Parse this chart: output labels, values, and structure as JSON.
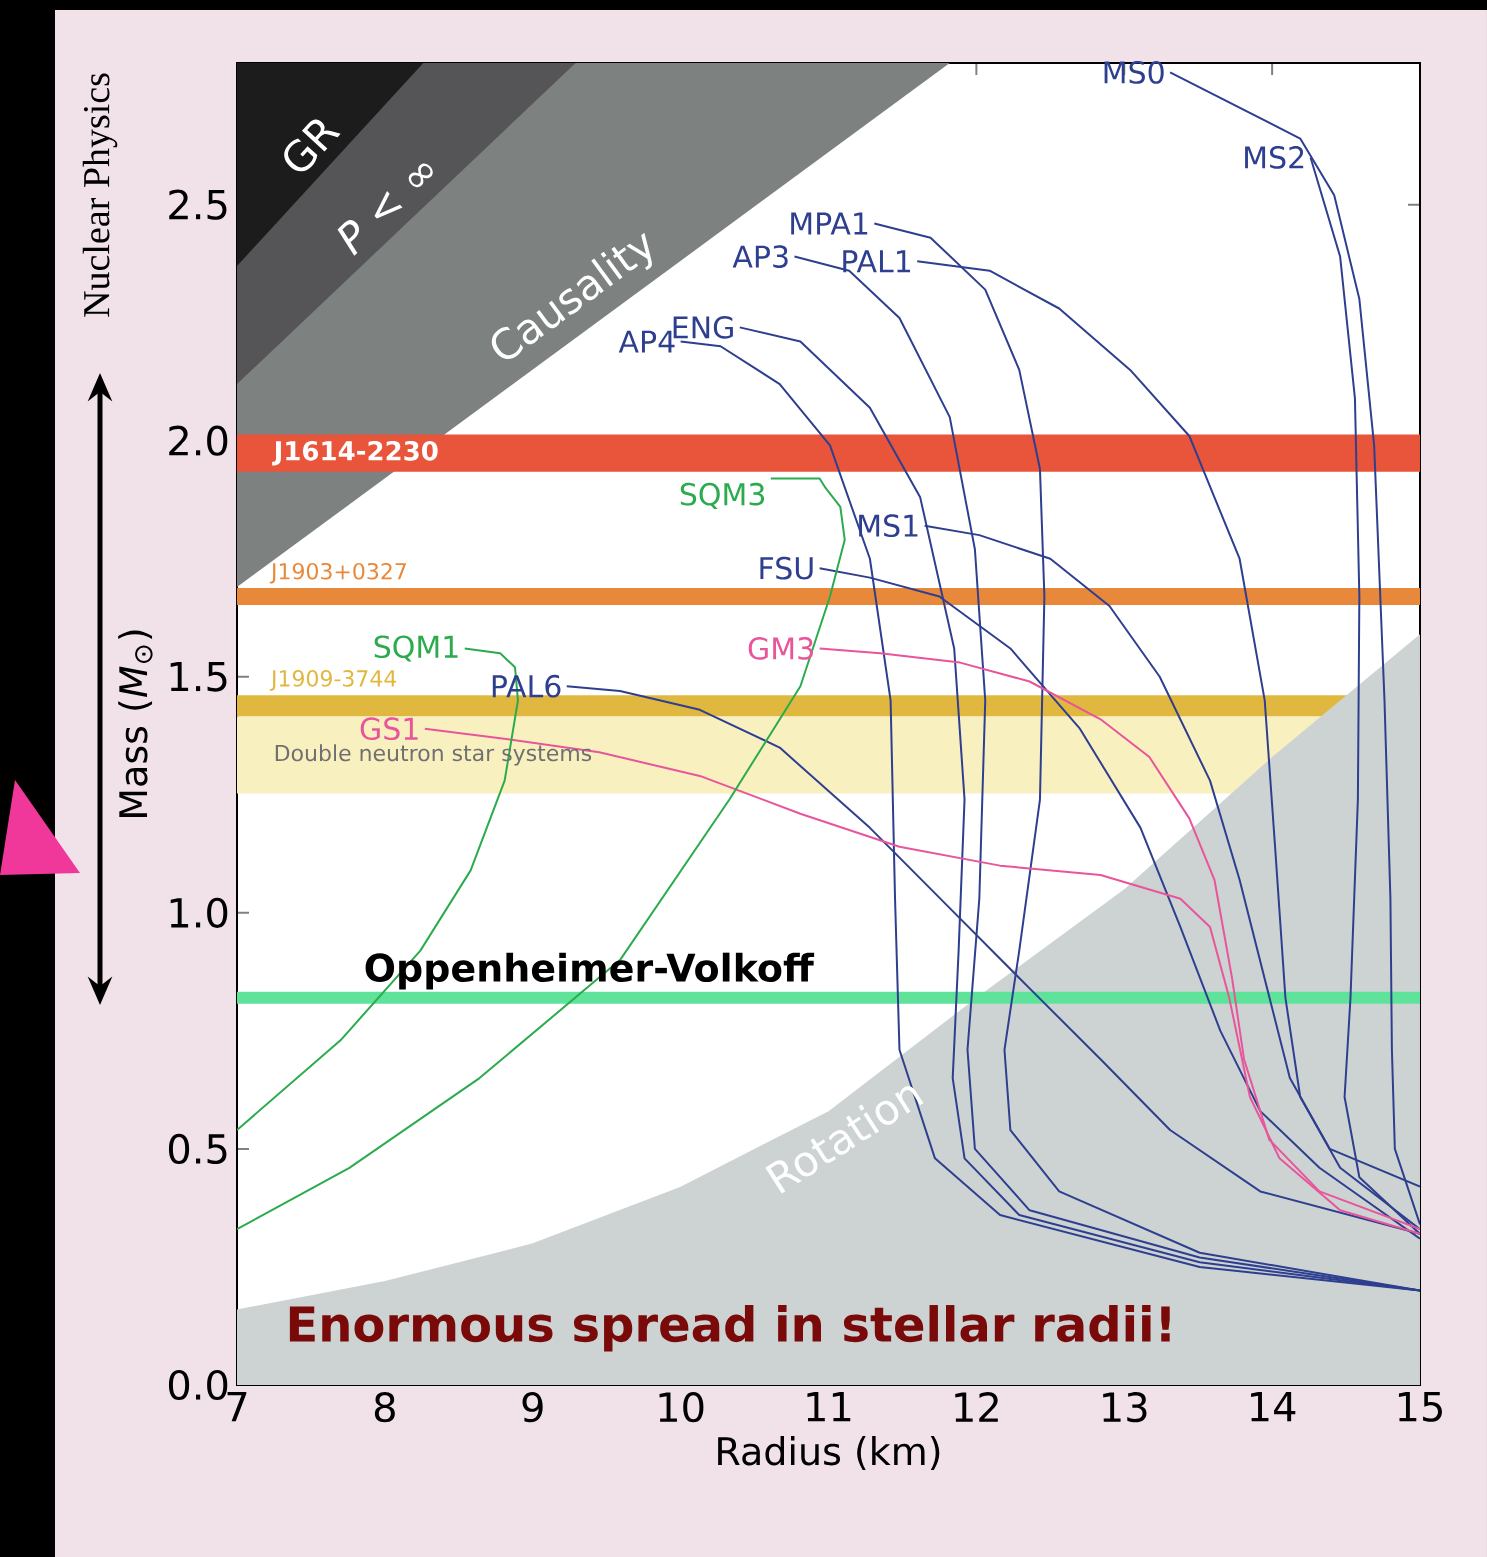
{
  "chart_data": {
    "type": "line",
    "xlabel": "Radius (km)",
    "ylabel": "Mass (*M*$_{⊙}$)",
    "xlim": [
      7,
      15
    ],
    "ylim": [
      0,
      2.8
    ],
    "xticks": [
      7,
      8,
      9,
      10,
      11,
      12,
      13,
      14,
      15
    ],
    "yticks": [
      {
        "value": 0,
        "label": "0.0"
      },
      0.5,
      {
        "value": 1,
        "label": "1.0"
      },
      1.5,
      {
        "value": 2,
        "label": "2.0"
      },
      2.5
    ],
    "series": [
      {
        "name": "Causality",
        "type": "area",
        "color": "#7d8180",
        "x": [
          7,
          11.82
        ],
        "values": [
          1.69,
          2.8
        ]
      },
      {
        "name": "*P* < ∞",
        "type": "area",
        "color": "#555558",
        "x": [
          7,
          9.29
        ],
        "values": [
          2.12,
          2.8
        ]
      },
      {
        "name": "GR",
        "type": "area",
        "color": "#1c1c1c",
        "x": [
          7,
          8.26
        ],
        "values": [
          2.37,
          2.8
        ]
      },
      {
        "name": "Rotation",
        "type": "area",
        "color": "#cdd3d3",
        "x": [
          7,
          8,
          9,
          10,
          11,
          12,
          13,
          14,
          15
        ],
        "values": [
          0.16,
          0.22,
          0.3,
          0.42,
          0.58,
          0.82,
          1.05,
          1.33,
          1.59
        ]
      },
      {
        "name": "MS0",
        "color": "#2e3f8f",
        "x": [
          13.31,
          14.19,
          14.42,
          14.59,
          14.69,
          14.76,
          14.8,
          14.81,
          14.83,
          15
        ],
        "values": [
          2.78,
          2.64,
          2.52,
          2.3,
          1.99,
          1.45,
          1.03,
          0.71,
          0.5,
          0.34
        ]
      },
      {
        "name": "MS2",
        "color": "#2e3f8f",
        "x": [
          14.26,
          14.46,
          14.56,
          14.59,
          14.58,
          14.53,
          14.49,
          14.59,
          15
        ],
        "values": [
          2.6,
          2.39,
          2.09,
          1.67,
          1.24,
          0.82,
          0.61,
          0.44,
          0.32
        ]
      },
      {
        "name": "MPA1",
        "color": "#2e3f8f",
        "x": [
          11.31,
          11.69,
          12.06,
          12.29,
          12.43,
          12.46,
          12.43,
          12.29,
          12.19,
          12.23,
          12.56,
          13.51,
          15
        ],
        "values": [
          2.46,
          2.43,
          2.32,
          2.15,
          1.94,
          1.67,
          1.24,
          0.92,
          0.71,
          0.54,
          0.41,
          0.28,
          0.2
        ]
      },
      {
        "name": "AP3",
        "color": "#2e3f8f",
        "x": [
          10.77,
          11.14,
          11.48,
          11.82,
          11.99,
          12.06,
          12.02,
          11.94,
          11.99,
          12.36,
          13.51,
          15
        ],
        "values": [
          2.39,
          2.36,
          2.26,
          2.05,
          1.77,
          1.45,
          1.03,
          0.71,
          0.5,
          0.37,
          0.27,
          0.2
        ]
      },
      {
        "name": "ENG",
        "color": "#2e3f8f",
        "x": [
          10.4,
          10.81,
          11.28,
          11.62,
          11.85,
          11.92,
          11.88,
          11.84,
          11.92,
          12.29,
          13.51,
          15
        ],
        "values": [
          2.24,
          2.21,
          2.07,
          1.88,
          1.56,
          1.24,
          0.92,
          0.65,
          0.48,
          0.36,
          0.26,
          0.2
        ]
      },
      {
        "name": "AP4",
        "color": "#2e3f8f",
        "x": [
          10.0,
          10.27,
          10.67,
          11.01,
          11.28,
          11.42,
          11.45,
          11.48,
          11.72,
          12.16,
          13.51,
          15
        ],
        "values": [
          2.21,
          2.2,
          2.12,
          1.99,
          1.75,
          1.45,
          1.03,
          0.71,
          0.48,
          0.36,
          0.25,
          0.2
        ]
      },
      {
        "name": "PAL1",
        "color": "#2e3f8f",
        "x": [
          11.6,
          12.09,
          12.56,
          13.04,
          13.44,
          13.78,
          13.95,
          14.02,
          14.09,
          14.19,
          14.46,
          15
        ],
        "values": [
          2.38,
          2.36,
          2.28,
          2.15,
          2.01,
          1.75,
          1.45,
          1.14,
          0.82,
          0.61,
          0.46,
          0.33
        ]
      },
      {
        "name": "MS1",
        "color": "#2e3f8f",
        "x": [
          11.65,
          12.02,
          12.5,
          12.9,
          13.24,
          13.58,
          13.78,
          13.95,
          14.12,
          14.39,
          15
        ],
        "values": [
          1.82,
          1.8,
          1.75,
          1.65,
          1.5,
          1.28,
          1.07,
          0.86,
          0.65,
          0.5,
          0.42
        ]
      },
      {
        "name": "FSU",
        "color": "#2e3f8f",
        "x": [
          10.94,
          11.28,
          11.75,
          12.23,
          12.7,
          13.11,
          13.38,
          13.65,
          13.92,
          14.32,
          15
        ],
        "values": [
          1.73,
          1.71,
          1.67,
          1.56,
          1.39,
          1.18,
          0.97,
          0.75,
          0.58,
          0.46,
          0.31
        ]
      },
      {
        "name": "PAL6",
        "color": "#2e3f8f",
        "x": [
          9.23,
          9.59,
          10.13,
          10.67,
          11.28,
          11.82,
          12.36,
          12.84,
          13.31,
          13.92,
          15
        ],
        "values": [
          1.48,
          1.47,
          1.43,
          1.35,
          1.18,
          1.01,
          0.84,
          0.69,
          0.54,
          0.41,
          0.32
        ]
      },
      {
        "name": "GM3",
        "color": "#e8559a",
        "x": [
          10.94,
          11.35,
          11.89,
          12.36,
          12.84,
          13.17,
          13.44,
          13.61,
          13.73,
          13.81,
          13.98,
          14.32,
          15
        ],
        "values": [
          1.56,
          1.55,
          1.53,
          1.49,
          1.41,
          1.33,
          1.2,
          1.07,
          0.86,
          0.69,
          0.52,
          0.41,
          0.33
        ]
      },
      {
        "name": "GS1",
        "color": "#e8559a",
        "x": [
          8.27,
          8.78,
          9.45,
          10.13,
          10.81,
          11.48,
          12.16,
          12.84,
          13.38,
          13.58,
          13.71,
          13.85,
          14.05,
          14.46,
          15
        ],
        "values": [
          1.39,
          1.37,
          1.34,
          1.29,
          1.21,
          1.14,
          1.1,
          1.08,
          1.03,
          0.97,
          0.82,
          0.61,
          0.48,
          0.37,
          0.32
        ]
      },
      {
        "name": "SQM1",
        "color": "#2bab4e",
        "x": [
          8.54,
          8.78,
          8.88,
          8.9,
          8.81,
          8.58,
          8.24,
          7.7,
          7.0
        ],
        "values": [
          1.56,
          1.55,
          1.52,
          1.45,
          1.28,
          1.09,
          0.92,
          0.73,
          0.54
        ]
      },
      {
        "name": "SQM3",
        "color": "#2bab4e",
        "x": [
          10.61,
          10.94,
          10.98,
          11.08,
          11.11,
          11.01,
          10.81,
          10.33,
          9.59,
          8.64,
          7.76,
          7.0
        ],
        "values": [
          1.92,
          1.92,
          1.9,
          1.86,
          1.79,
          1.67,
          1.48,
          1.24,
          0.9,
          0.65,
          0.46,
          0.33
        ]
      }
    ],
    "bands": [
      {
        "axis": "y",
        "from": 1.934,
        "to": 2.013,
        "label": "J1614-2230",
        "color": "#e8553a"
      },
      {
        "axis": "y",
        "from": 1.652,
        "to": 1.688,
        "label": "J1903+0327",
        "color": "#e8883a"
      },
      {
        "axis": "y",
        "from": 1.416,
        "to": 1.461,
        "label": "J1909-3744",
        "color": "#e0b840"
      },
      {
        "axis": "y",
        "from": 1.253,
        "to": 1.416,
        "label": "Double neutron star systems",
        "color": "#f9f0c0"
      }
    ],
    "ref_lines": [
      {
        "axis": "y",
        "value": 0.82,
        "label": "Oppenheimer-Volkoff",
        "color": "#5fe39a"
      }
    ],
    "annotations": [
      "Enormous spread in stellar radii!",
      "Nuclear Physics"
    ]
  }
}
